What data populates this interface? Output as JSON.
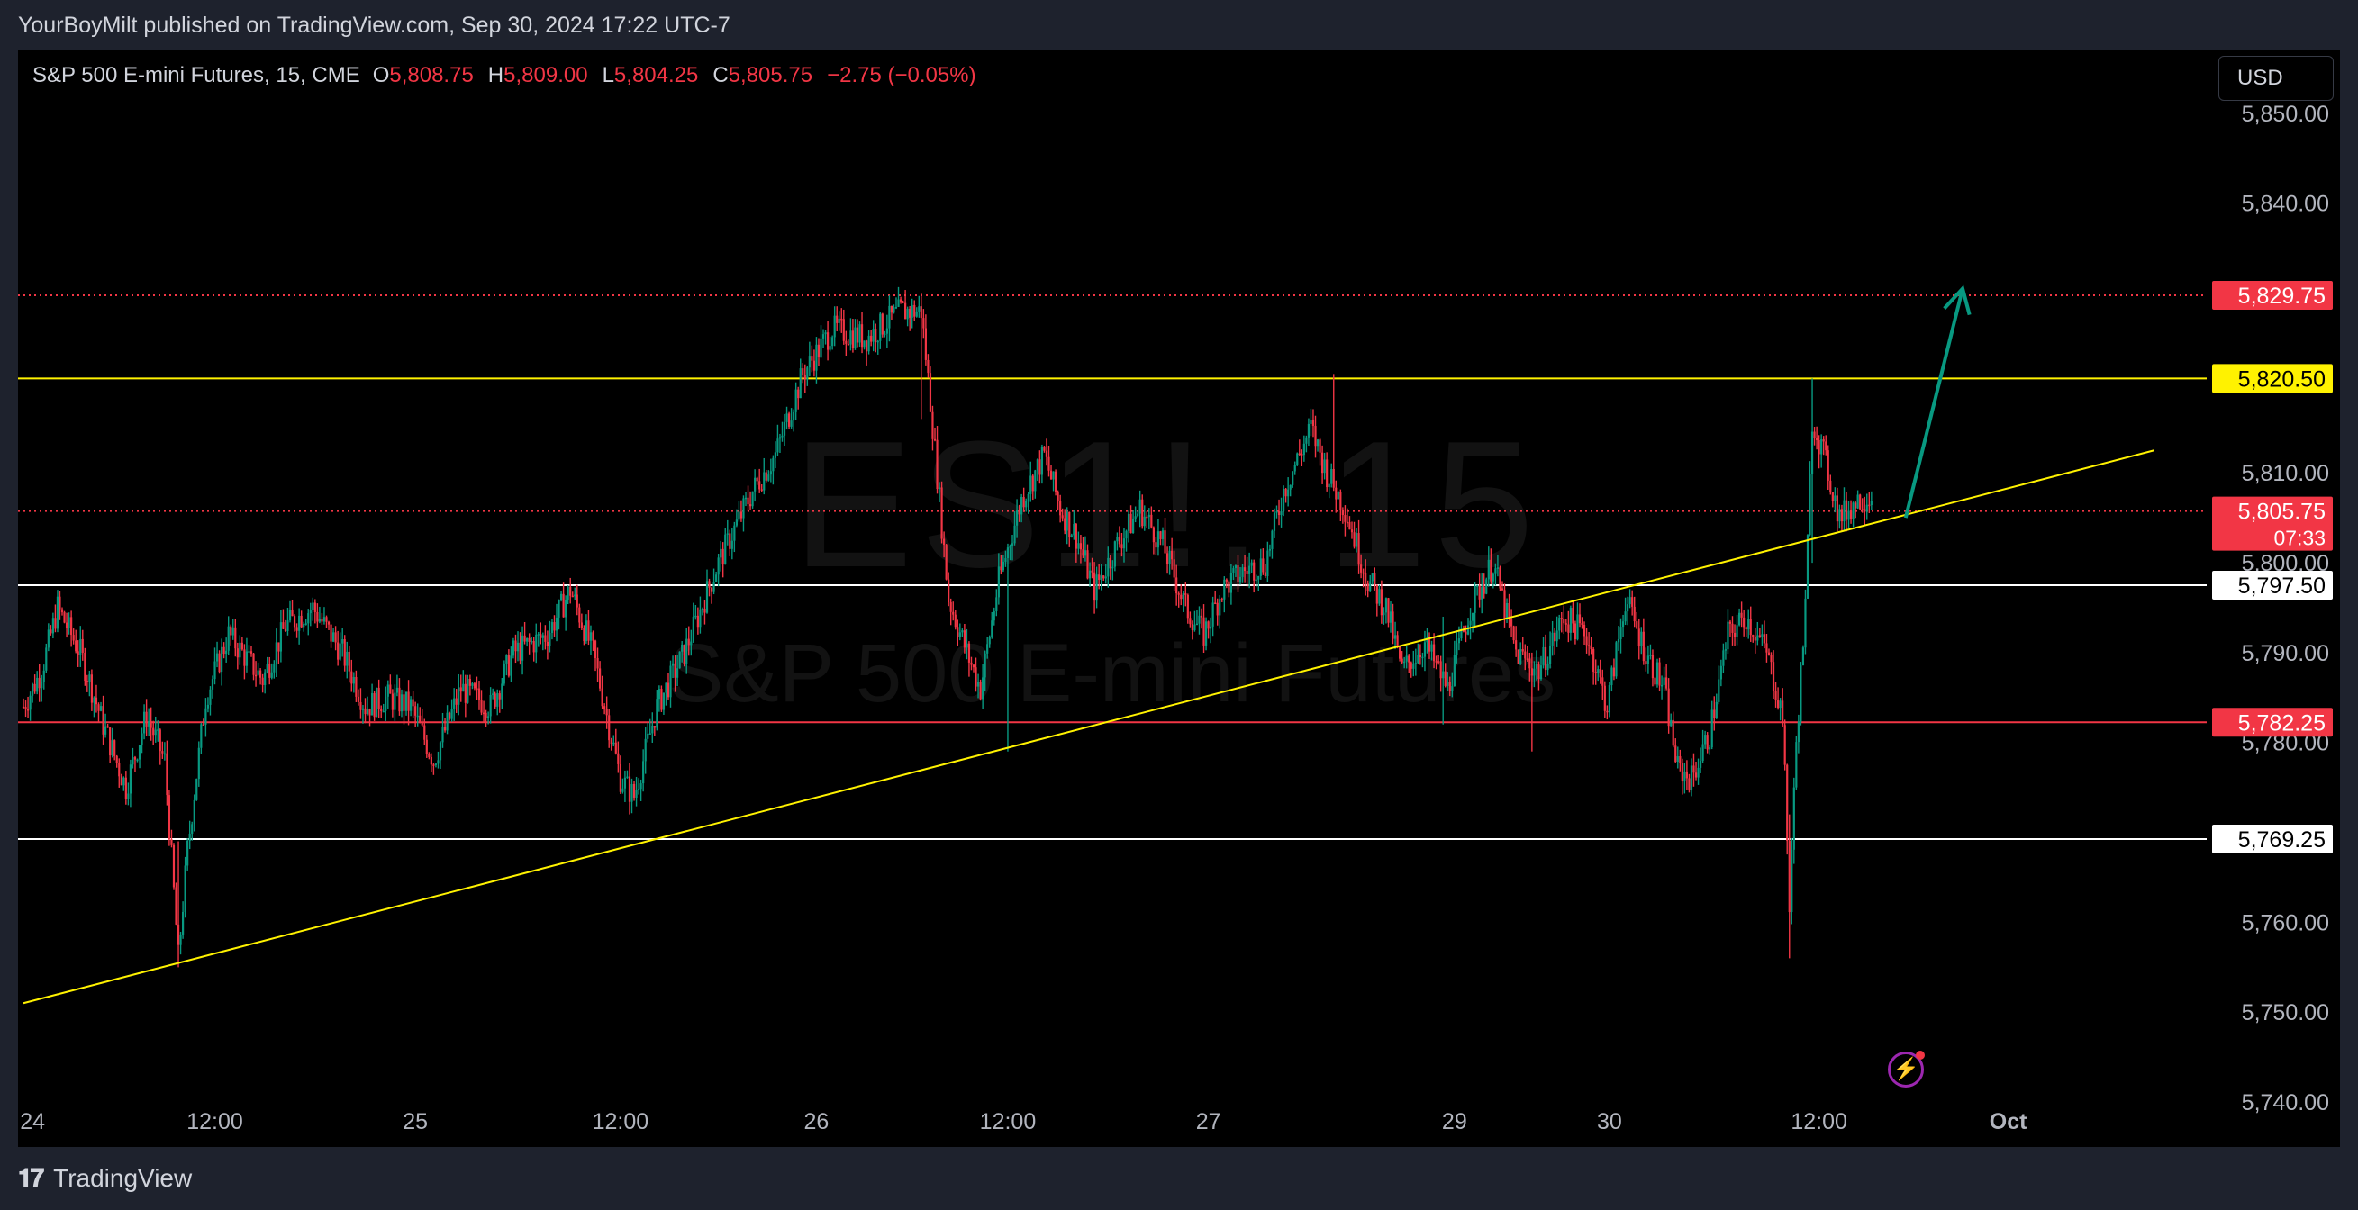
{
  "publish_line": "YourBoyMilt published on TradingView.com, Sep 30, 2024 17:22 UTC-7",
  "legend": {
    "symbol": "S&P 500 E-mini Futures, 15, CME",
    "o_label": "O",
    "o_value": "5,808.75",
    "h_label": "H",
    "h_value": "5,809.00",
    "l_label": "L",
    "l_value": "5,804.25",
    "c_label": "C",
    "c_value": "5,805.75",
    "change": "−2.75 (−0.05%)"
  },
  "currency_button": "USD",
  "watermark": {
    "symbol": "ES1!, 15",
    "name": "S&P 500 E-mini Futures"
  },
  "footer": {
    "brand": "TradingView",
    "logo": "tv-logo-icon"
  },
  "colors": {
    "up": "#089981",
    "down": "#f23645",
    "trendline": "#fff200",
    "background": "#000000"
  },
  "chart_data": {
    "type": "candlestick",
    "title": "S&P 500 E-mini Futures, 15, CME",
    "ylim": [
      5735,
      5857
    ],
    "y_ticks": [
      5850,
      5840,
      5810,
      5800,
      5790,
      5780,
      5760,
      5750,
      5740
    ],
    "y_tick_labels": [
      "5,850.00",
      "5,840.00",
      "5,810.00",
      "5,800.00",
      "5,790.00",
      "5,780.00",
      "5,760.00",
      "5,750.00",
      "5,740.00"
    ],
    "x_ticks": [
      {
        "label": "24",
        "bar": 4
      },
      {
        "label": "12:00",
        "bar": 84
      },
      {
        "label": "25",
        "bar": 172
      },
      {
        "label": "12:00",
        "bar": 262
      },
      {
        "label": "26",
        "bar": 348
      },
      {
        "label": "12:00",
        "bar": 432
      },
      {
        "label": "27",
        "bar": 520
      },
      {
        "label": "29",
        "bar": 628
      },
      {
        "label": "30",
        "bar": 696
      },
      {
        "label": "12:00",
        "bar": 788
      },
      {
        "label": "Oct",
        "bar": 871,
        "bold": true
      }
    ],
    "total_bar_slots": 1000,
    "price_path": [
      [
        0,
        5784
      ],
      [
        8,
        5788
      ],
      [
        15,
        5795
      ],
      [
        25,
        5790
      ],
      [
        35,
        5782
      ],
      [
        45,
        5775
      ],
      [
        54,
        5783
      ],
      [
        62,
        5778
      ],
      [
        68,
        5756
      ],
      [
        72,
        5768
      ],
      [
        80,
        5785
      ],
      [
        90,
        5792
      ],
      [
        105,
        5787
      ],
      [
        115,
        5793
      ],
      [
        127,
        5795
      ],
      [
        140,
        5790
      ],
      [
        150,
        5784
      ],
      [
        160,
        5785
      ],
      [
        170,
        5784
      ],
      [
        180,
        5778
      ],
      [
        192,
        5786
      ],
      [
        205,
        5784
      ],
      [
        215,
        5790
      ],
      [
        230,
        5792
      ],
      [
        240,
        5797
      ],
      [
        250,
        5790
      ],
      [
        262,
        5776
      ],
      [
        268,
        5774
      ],
      [
        278,
        5784
      ],
      [
        290,
        5790
      ],
      [
        305,
        5800
      ],
      [
        320,
        5808
      ],
      [
        330,
        5812
      ],
      [
        342,
        5821
      ],
      [
        355,
        5826
      ],
      [
        370,
        5825
      ],
      [
        385,
        5828
      ],
      [
        394,
        5828
      ],
      [
        398,
        5818
      ],
      [
        406,
        5796
      ],
      [
        414,
        5790
      ],
      [
        420,
        5786
      ],
      [
        428,
        5798
      ],
      [
        438,
        5807
      ],
      [
        448,
        5812
      ],
      [
        455,
        5806
      ],
      [
        462,
        5803
      ],
      [
        470,
        5797
      ],
      [
        480,
        5802
      ],
      [
        490,
        5806
      ],
      [
        500,
        5802
      ],
      [
        510,
        5795
      ],
      [
        518,
        5792
      ],
      [
        526,
        5797
      ],
      [
        535,
        5799
      ],
      [
        545,
        5800
      ],
      [
        553,
        5808
      ],
      [
        565,
        5815
      ],
      [
        572,
        5810
      ],
      [
        580,
        5806
      ],
      [
        590,
        5798
      ],
      [
        598,
        5795
      ],
      [
        605,
        5788
      ],
      [
        615,
        5791
      ],
      [
        625,
        5786
      ],
      [
        635,
        5795
      ],
      [
        645,
        5800
      ],
      [
        655,
        5790
      ],
      [
        665,
        5788
      ],
      [
        676,
        5794
      ],
      [
        686,
        5792
      ],
      [
        695,
        5784
      ],
      [
        703,
        5796
      ],
      [
        712,
        5790
      ],
      [
        720,
        5786
      ],
      [
        726,
        5777
      ],
      [
        732,
        5776
      ],
      [
        740,
        5781
      ],
      [
        748,
        5792
      ],
      [
        756,
        5794
      ],
      [
        765,
        5790
      ],
      [
        772,
        5783
      ],
      [
        775,
        5762
      ],
      [
        778,
        5780
      ],
      [
        782,
        5795
      ],
      [
        785,
        5816
      ],
      [
        790,
        5812
      ],
      [
        797,
        5805
      ],
      [
        805,
        5807
      ],
      [
        811,
        5807.5
      ]
    ],
    "spikes": [
      {
        "bar": 68,
        "low": 5755,
        "high": 5769
      },
      {
        "bar": 116,
        "low": 5792,
        "high": 5795
      },
      {
        "bar": 394,
        "low": 5816,
        "high": 5830
      },
      {
        "bar": 432,
        "low": 5779,
        "high": 5794
      },
      {
        "bar": 575,
        "low": 5808,
        "high": 5821
      },
      {
        "bar": 623,
        "low": 5782,
        "high": 5794
      },
      {
        "bar": 662,
        "low": 5779,
        "high": 5790
      },
      {
        "bar": 775,
        "low": 5756,
        "high": 5772
      },
      {
        "bar": 785,
        "low": 5800,
        "high": 5820.5
      }
    ],
    "horizontal_lines": [
      {
        "price": 5829.75,
        "label": "5,829.75",
        "color": "#f23645",
        "style": "dotted",
        "label_bg": "#f23645",
        "label_fg": "#ffffff"
      },
      {
        "price": 5820.5,
        "label": "5,820.50",
        "color": "#fff200",
        "style": "solid",
        "label_bg": "#fff200",
        "label_fg": "#000000"
      },
      {
        "price": 5805.75,
        "label": "5,805.75",
        "sublabel": "07:33",
        "color": "#f23645",
        "style": "dotted",
        "label_bg": "#f23645",
        "label_fg": "#ffffff"
      },
      {
        "price": 5797.5,
        "label": "5,797.50",
        "color": "#ffffff",
        "style": "solid",
        "label_bg": "#ffffff",
        "label_fg": "#000000"
      },
      {
        "price": 5782.25,
        "label": "5,782.25",
        "color": "#f23645",
        "style": "solid",
        "label_bg": "#f23645",
        "label_fg": "#ffffff"
      },
      {
        "price": 5769.25,
        "label": "5,769.25",
        "color": "#ffffff",
        "style": "solid",
        "label_bg": "#ffffff",
        "label_fg": "#000000"
      }
    ],
    "trendline": {
      "from": {
        "bar": 0,
        "price": 5751
      },
      "to": {
        "bar": 935,
        "price": 5812.5
      },
      "color": "#fff200"
    },
    "arrow": {
      "from": {
        "bar": 826,
        "price": 5805
      },
      "to": {
        "bar": 851,
        "price": 5830.5
      },
      "color": "#089981"
    }
  }
}
